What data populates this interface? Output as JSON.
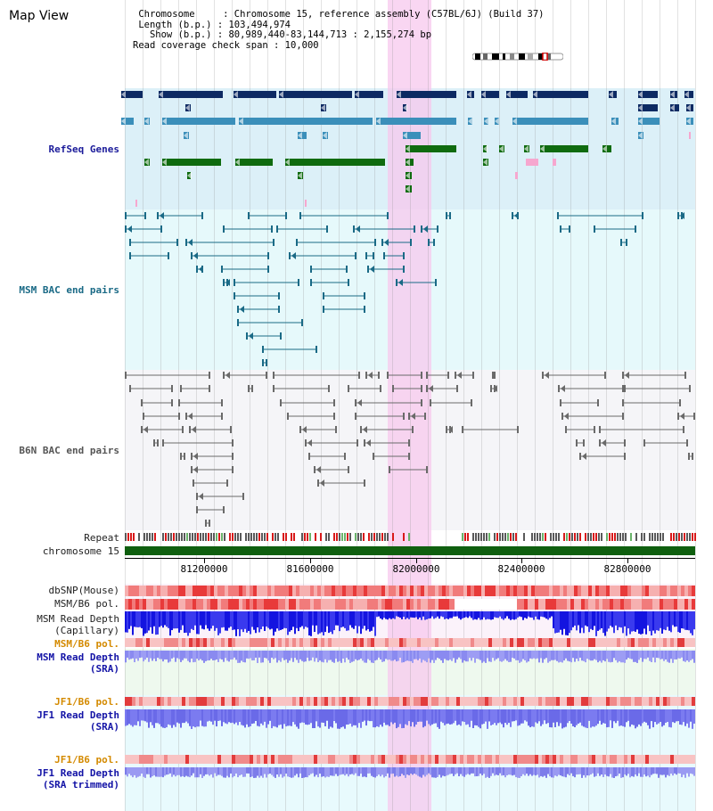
{
  "header": {
    "title": "Map View",
    "chromosome_line": " Chromosome     : Chromosome 15, reference assembly (C57BL/6J) (Build 37)",
    "length_line": " Length (b.p.) : 103,494,974",
    "show_line": "   Show (b.p.) : 80,989,440-83,144,713 : 2,155,274 bp",
    "coverage_line": "Read coverage check span : 10,000"
  },
  "tracks": {
    "refseq": "RefSeq Genes",
    "msm_bac": "MSM BAC end pairs",
    "b6n_bac": "B6N BAC end pairs",
    "repeat": "Repeat",
    "chromosome": "chromosome 15",
    "dbsnp": "dbSNP(Mouse)",
    "msm_b6_pol_1": "MSM/B6 pol.",
    "msm_depth_cap_1": "MSM Read Depth",
    "msm_depth_cap_2": "(Capillary)",
    "msm_b6_pol_2": "MSM/B6 pol.",
    "msm_depth_sra_1": "MSM Read Depth",
    "msm_depth_sra_2": "(SRA)",
    "jf1_b6_pol_1": "JF1/B6 pol.",
    "jf1_depth_sra_1": "JF1 Read Depth",
    "jf1_depth_sra_2": "(SRA)",
    "jf1_b6_pol_2": "JF1/B6 pol.",
    "jf1_depth_trim_1": "JF1 Read Depth",
    "jf1_depth_trim_2": "(SRA trimmed)"
  },
  "axis": {
    "ticks": [
      "81200000",
      "81600000",
      "82000000",
      "82400000",
      "82800000"
    ]
  },
  "colors": {
    "highlight": "#f7d6f0",
    "refseq_bg": "#dcf0f8",
    "msm_bg": "#e6f9fb",
    "b6n_bg": "#f4f4f8",
    "gene_navy": "#0d2a63",
    "gene_teal": "#3b8fba",
    "gene_green": "#0f6b0f",
    "msm_pair": "#1a6a86",
    "b6n_pair": "#6a6a6a",
    "chromosome_bar": "#0f5f0f"
  }
}
